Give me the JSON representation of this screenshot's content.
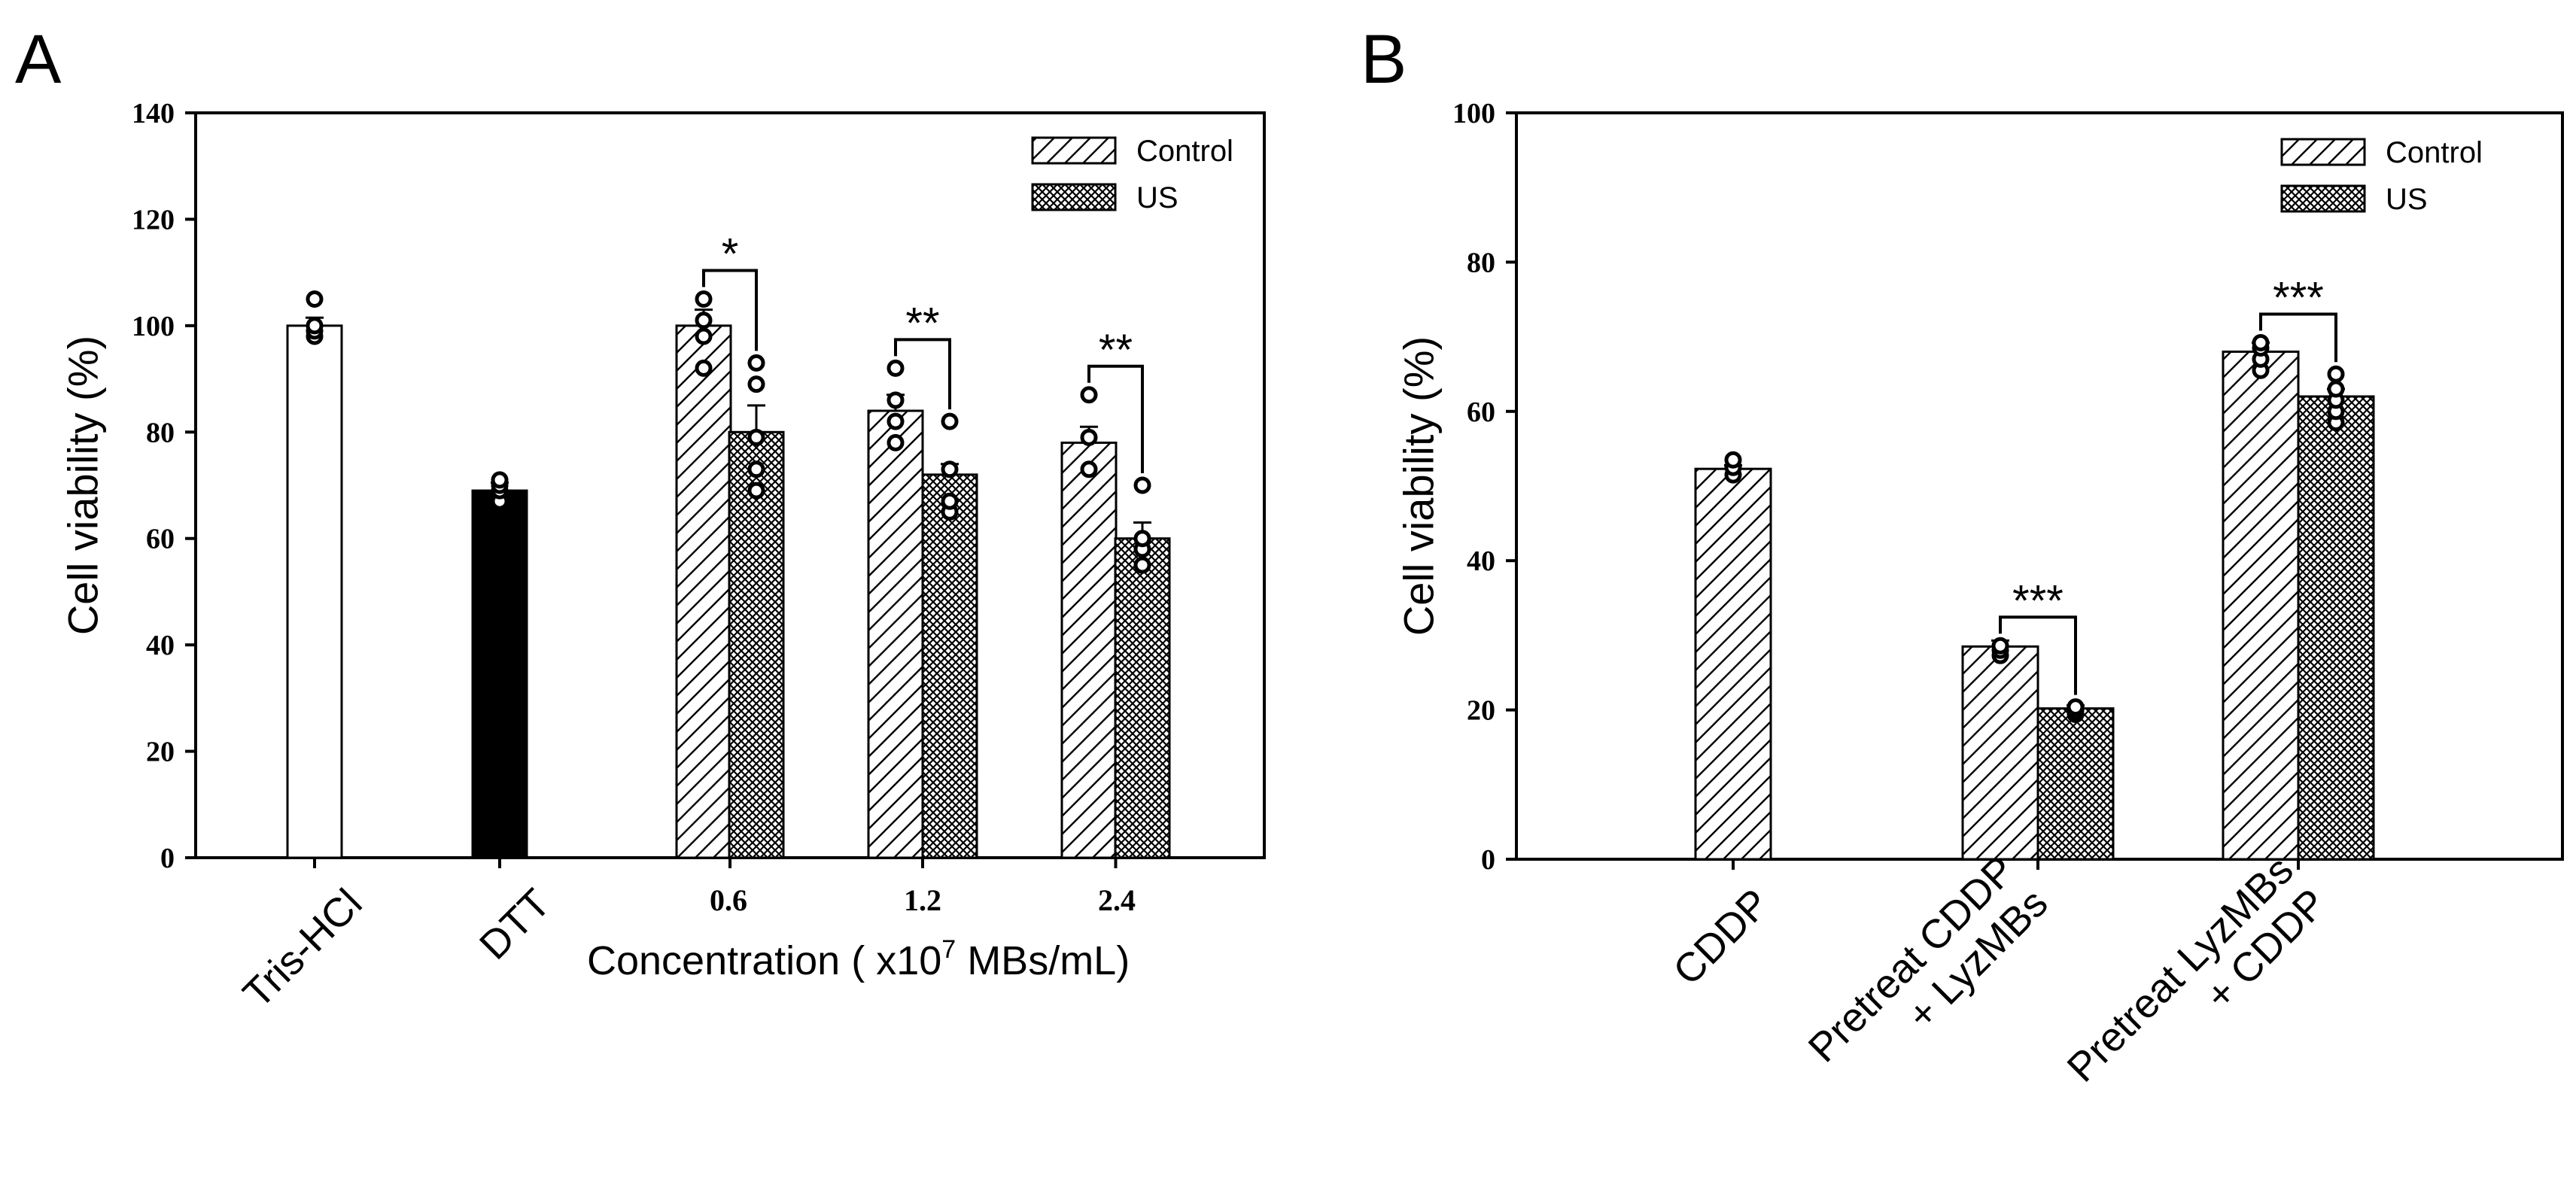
{
  "chart_data": [
    {
      "panel": "A",
      "type": "bar",
      "ylabel": "Cell viability (%)",
      "xlabel_main": "Concentration ( x10",
      "xlabel_sup": "7",
      "xlabel_tail": " MBs/mL)",
      "ylim": [
        0,
        140
      ],
      "yticks": [
        "0",
        "20",
        "40",
        "60",
        "80",
        "100",
        "120",
        "140"
      ],
      "legend": [
        "Control",
        "US"
      ],
      "legend_position": "top-right",
      "categories": [
        "Tris-HCl",
        "DTT",
        "0.6",
        "1.2",
        "2.4"
      ],
      "series": [
        {
          "name": "Control",
          "values": [
            100,
            69,
            100,
            84,
            78
          ],
          "errors": [
            1.5,
            1.5,
            3,
            3,
            3
          ]
        },
        {
          "name": "US",
          "values": [
            null,
            null,
            80,
            72,
            60
          ],
          "errors": [
            null,
            null,
            5,
            2,
            3
          ]
        }
      ],
      "points": {
        "Control": [
          [
            98,
            99,
            100,
            105
          ],
          [
            67,
            69,
            70,
            71
          ],
          [
            92,
            98,
            101,
            105
          ],
          [
            78,
            82,
            86,
            92
          ],
          [
            73,
            79,
            87
          ]
        ],
        "US": [
          null,
          null,
          [
            69,
            73,
            79,
            89,
            93
          ],
          [
            65,
            67,
            73,
            82
          ],
          [
            55,
            58,
            60,
            70
          ]
        ]
      },
      "significance": [
        {
          "category": "0.6",
          "label": "*"
        },
        {
          "category": "1.2",
          "label": "**"
        },
        {
          "category": "2.4",
          "label": "**"
        }
      ]
    },
    {
      "panel": "B",
      "type": "bar",
      "ylabel": "Cell viability (%)",
      "ylim": [
        0,
        100
      ],
      "yticks": [
        "0",
        "20",
        "40",
        "60",
        "80",
        "100"
      ],
      "legend": [
        "Control",
        "US"
      ],
      "legend_position": "top-right",
      "categories": [
        "CDDP",
        "Pretreat CDDP\n+ LyzMBs",
        "Pretreat LyzMBs\n+ CDDP"
      ],
      "series": [
        {
          "name": "Control",
          "values": [
            52.3,
            28.5,
            68
          ],
          "errors": [
            0.5,
            0.8,
            1.2
          ]
        },
        {
          "name": "US",
          "values": [
            null,
            20.2,
            62
          ],
          "errors": [
            null,
            0.4,
            1
          ]
        }
      ],
      "points": {
        "Control": [
          [
            51.5,
            52.5,
            53.5
          ],
          [
            27.3,
            28,
            28.6
          ],
          [
            65.5,
            67,
            68.5,
            69.2
          ]
        ],
        "US": [
          null,
          [
            19.4,
            19.9,
            20.4
          ],
          [
            58.5,
            60,
            61.5,
            63,
            65
          ]
        ]
      },
      "significance": [
        {
          "category": "Pretreat CDDP\n+ LyzMBs",
          "label": "***"
        },
        {
          "category": "Pretreat LyzMBs\n+ CDDP",
          "label": "***"
        }
      ]
    }
  ]
}
